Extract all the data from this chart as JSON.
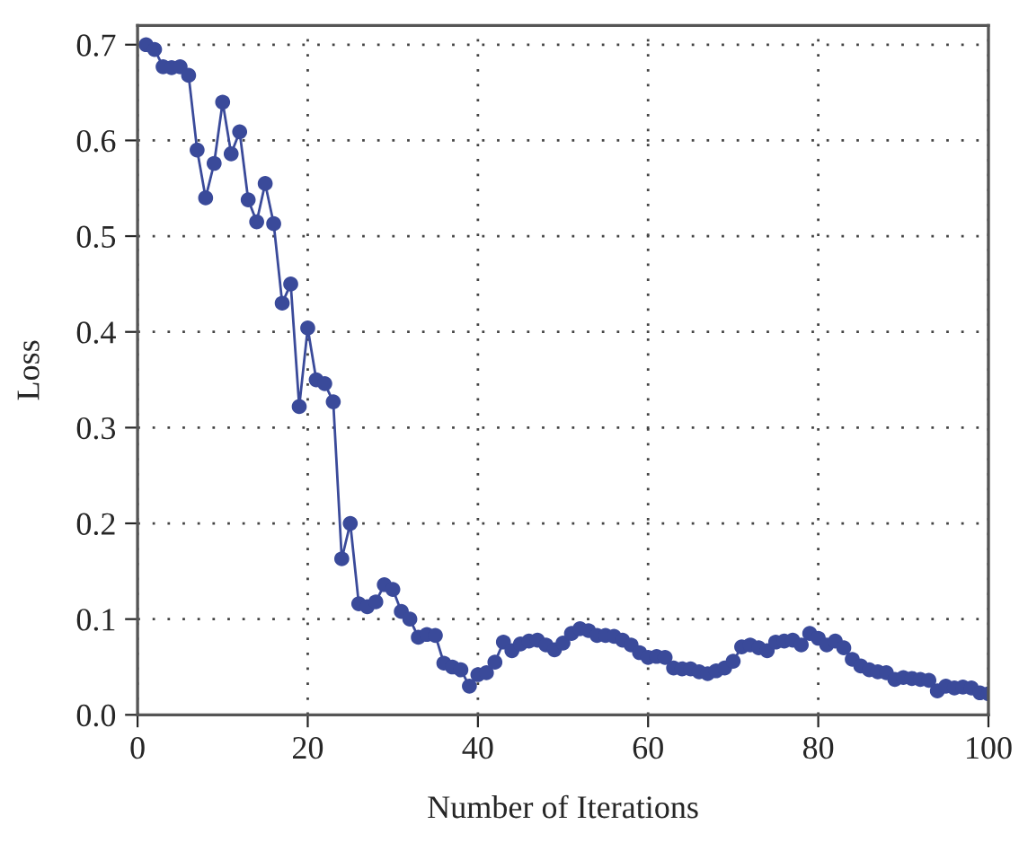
{
  "chart_data": {
    "type": "line",
    "xlabel": "Number of Iterations",
    "ylabel": "Loss",
    "x": [
      1,
      2,
      3,
      4,
      5,
      6,
      7,
      8,
      9,
      10,
      11,
      12,
      13,
      14,
      15,
      16,
      17,
      18,
      19,
      20,
      21,
      22,
      23,
      24,
      25,
      26,
      27,
      28,
      29,
      30,
      31,
      32,
      33,
      34,
      35,
      36,
      37,
      38,
      39,
      40,
      41,
      42,
      43,
      44,
      45,
      46,
      47,
      48,
      49,
      50,
      51,
      52,
      53,
      54,
      55,
      56,
      57,
      58,
      59,
      60,
      61,
      62,
      63,
      64,
      65,
      66,
      67,
      68,
      69,
      70,
      71,
      72,
      73,
      74,
      75,
      76,
      77,
      78,
      79,
      80,
      81,
      82,
      83,
      84,
      85,
      86,
      87,
      88,
      89,
      90,
      91,
      92,
      93,
      94,
      95,
      96,
      97,
      98,
      99,
      100
    ],
    "series": [
      {
        "color": "#3a4a9a",
        "values": [
          0.7,
          0.695,
          0.677,
          0.676,
          0.677,
          0.668,
          0.59,
          0.54,
          0.576,
          0.64,
          0.586,
          0.609,
          0.538,
          0.515,
          0.555,
          0.513,
          0.43,
          0.45,
          0.322,
          0.404,
          0.35,
          0.346,
          0.327,
          0.163,
          0.2,
          0.116,
          0.113,
          0.118,
          0.136,
          0.131,
          0.108,
          0.1,
          0.081,
          0.084,
          0.083,
          0.054,
          0.05,
          0.047,
          0.03,
          0.042,
          0.044,
          0.055,
          0.076,
          0.067,
          0.074,
          0.077,
          0.078,
          0.073,
          0.068,
          0.075,
          0.085,
          0.09,
          0.088,
          0.083,
          0.083,
          0.082,
          0.078,
          0.073,
          0.065,
          0.06,
          0.061,
          0.06,
          0.049,
          0.048,
          0.048,
          0.045,
          0.043,
          0.046,
          0.049,
          0.056,
          0.071,
          0.073,
          0.07,
          0.067,
          0.076,
          0.077,
          0.078,
          0.073,
          0.085,
          0.08,
          0.073,
          0.077,
          0.07,
          0.058,
          0.051,
          0.047,
          0.045,
          0.044,
          0.037,
          0.039,
          0.038,
          0.037,
          0.036,
          0.025,
          0.03,
          0.028,
          0.029,
          0.028,
          0.023,
          0.022
        ]
      }
    ],
    "xlim": [
      0,
      100
    ],
    "ylim": [
      0,
      0.72
    ],
    "xticks": [
      0,
      20,
      40,
      60,
      80,
      100
    ],
    "yticks": [
      {
        "value": 0,
        "label": "0.0"
      },
      0.1,
      0.2,
      0.3,
      0.4,
      0.5,
      0.6,
      0.7
    ],
    "grid": true,
    "marker": "circle",
    "line_style": "solid"
  }
}
